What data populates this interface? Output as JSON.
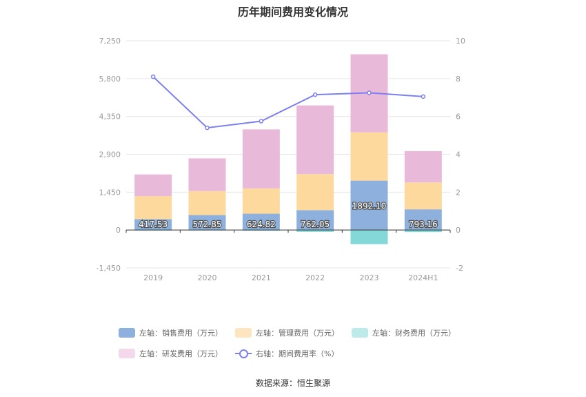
{
  "chart_data": {
    "type": "bar",
    "title": "历年期间费用变化情况",
    "categories": [
      "2019",
      "2020",
      "2021",
      "2022",
      "2023",
      "2024H1"
    ],
    "left_axis": {
      "ylim": [
        -1450,
        7250
      ],
      "ticks": [
        "7,250",
        "5,800",
        "4,350",
        "2,900",
        "1,450",
        "0",
        "-1,450"
      ]
    },
    "right_axis": {
      "ylim": [
        -2,
        10
      ],
      "ticks": [
        "10",
        "8",
        "6",
        "4",
        "2",
        "0",
        "-2"
      ]
    },
    "series": [
      {
        "name": "左轴：销售费用（万元）",
        "kind": "bar",
        "color": "#8eb0dc",
        "values": [
          417.53,
          572.85,
          624.82,
          762.05,
          1892.1,
          793.16
        ],
        "labels": [
          "417.53",
          "572.85",
          "624.82",
          "762.05",
          "1892.10",
          "793.16"
        ]
      },
      {
        "name": "左轴：管理费用（万元）",
        "kind": "bar",
        "color": "#fdd99d",
        "values": [
          880,
          920,
          970,
          1380,
          1850,
          1030
        ]
      },
      {
        "name": "左轴：财务费用（万元）",
        "kind": "bar",
        "color": "#84d8d8",
        "values": [
          -20,
          -15,
          -25,
          -70,
          -540,
          -80
        ]
      },
      {
        "name": "左轴：研发费用（万元）",
        "kind": "bar",
        "color": "#e9b9da",
        "values": [
          830,
          1250,
          2260,
          2630,
          2990,
          1200
        ]
      },
      {
        "name": "右轴：期间费用率（%）",
        "kind": "line",
        "color": "#7c7fef",
        "values": [
          8.1,
          5.4,
          5.75,
          7.15,
          7.25,
          7.05
        ]
      }
    ],
    "grid": true,
    "legend_position": "bottom"
  },
  "legend": {
    "row1": [
      "左轴：销售费用（万元）",
      "左轴：管理费用（万元）",
      "左轴：财务费用（万元）"
    ],
    "row2": [
      "左轴：研发费用（万元）",
      "右轴：期间费用率（%）"
    ]
  },
  "colors": {
    "sales": "#8eb0dc",
    "admin": "#fdd99d",
    "finance": "#84d8d8",
    "rnd": "#e9b9da",
    "line": "#7c7fef",
    "legend_sales": "#8eb0dc",
    "legend_admin": "#fde6bf",
    "legend_finance": "#bfeaea",
    "legend_rnd": "#f4d9ec"
  },
  "source": "数据来源：恒生聚源"
}
